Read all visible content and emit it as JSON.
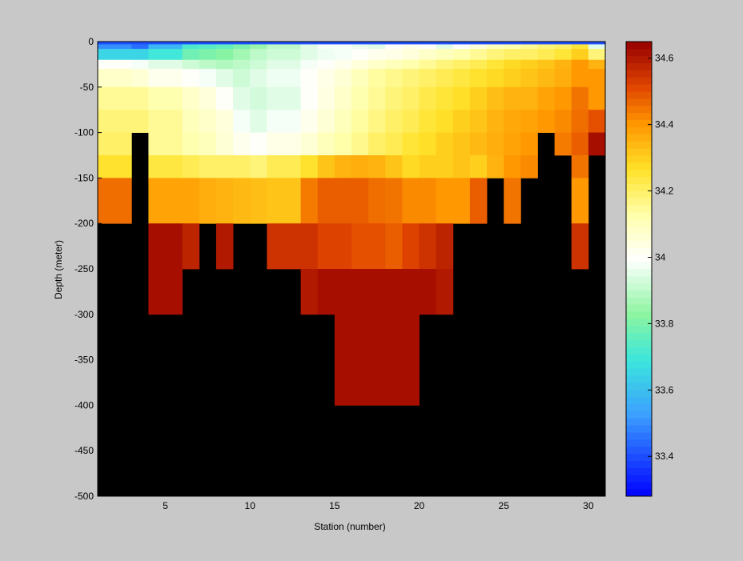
{
  "chart_data": {
    "type": "heatmap",
    "xlabel": "Station (number)",
    "ylabel": "Depth (meter)",
    "xlim": [
      1,
      31
    ],
    "ylim": [
      -500,
      0
    ],
    "xticks": [
      5,
      10,
      15,
      20,
      25,
      30
    ],
    "yticks": [
      0,
      -50,
      -100,
      -150,
      -200,
      -250,
      -300,
      -350,
      -400,
      -450,
      -500
    ],
    "x_cell_edges": [
      1,
      3,
      4,
      6,
      7,
      8,
      9,
      10,
      11,
      13,
      14,
      15,
      16,
      17,
      18,
      19,
      20,
      21,
      22,
      23,
      24,
      25,
      26,
      27,
      28,
      29,
      30,
      31
    ],
    "depth_layers": [
      {
        "top": 0,
        "bottom": -3,
        "values": [
          33.4,
          33.4,
          33.4,
          33.4,
          33.4,
          33.4,
          33.4,
          33.4,
          33.4,
          33.4,
          33.4,
          33.4,
          33.4,
          33.4,
          33.4,
          33.4,
          33.4,
          33.4,
          33.4,
          33.4,
          33.4,
          33.4,
          33.4,
          33.4,
          33.4,
          33.4,
          33.4
        ]
      },
      {
        "top": -3,
        "bottom": -8,
        "values": [
          33.5,
          33.45,
          33.58,
          33.72,
          33.74,
          33.76,
          33.8,
          33.85,
          33.9,
          33.95,
          33.98,
          33.98,
          33.96,
          33.95,
          34.0,
          34.02,
          34.0,
          33.95,
          34.0,
          34.05,
          34.1,
          34.12,
          34.15,
          34.18,
          34.2,
          34.25,
          33.95
        ]
      },
      {
        "top": -8,
        "bottom": -20,
        "values": [
          33.65,
          33.65,
          33.7,
          33.78,
          33.8,
          33.82,
          33.86,
          33.9,
          33.92,
          33.95,
          33.97,
          33.98,
          34.0,
          34.02,
          34.03,
          34.05,
          34.08,
          34.1,
          34.12,
          34.15,
          34.18,
          34.2,
          34.2,
          34.22,
          34.25,
          34.3,
          34.18
        ]
      },
      {
        "top": -20,
        "bottom": -30,
        "values": [
          34.0,
          33.98,
          33.95,
          33.92,
          33.9,
          33.88,
          33.9,
          33.92,
          33.95,
          33.98,
          34.0,
          34.02,
          34.05,
          34.08,
          34.1,
          34.12,
          34.15,
          34.18,
          34.2,
          34.22,
          34.25,
          34.28,
          34.3,
          34.32,
          34.35,
          34.4,
          34.35
        ]
      },
      {
        "top": -30,
        "bottom": -50,
        "values": [
          34.08,
          34.06,
          34.02,
          34.0,
          33.98,
          33.95,
          33.92,
          33.95,
          33.97,
          34.0,
          34.03,
          34.06,
          34.1,
          34.14,
          34.16,
          34.18,
          34.2,
          34.22,
          34.24,
          34.26,
          34.28,
          34.3,
          34.32,
          34.34,
          34.36,
          34.4,
          34.4
        ]
      },
      {
        "top": -50,
        "bottom": -75,
        "values": [
          34.15,
          34.15,
          34.12,
          34.08,
          34.05,
          34.0,
          33.95,
          33.93,
          33.95,
          34.0,
          34.04,
          34.08,
          34.12,
          34.15,
          34.18,
          34.2,
          34.23,
          34.25,
          34.27,
          34.3,
          34.33,
          34.35,
          34.35,
          34.38,
          34.4,
          34.45,
          34.4
        ]
      },
      {
        "top": -75,
        "bottom": -100,
        "values": [
          34.18,
          34.18,
          34.15,
          34.1,
          34.08,
          34.05,
          33.98,
          33.95,
          33.98,
          34.02,
          34.06,
          34.1,
          34.14,
          34.17,
          34.2,
          34.22,
          34.25,
          34.27,
          34.3,
          34.32,
          34.35,
          34.37,
          34.38,
          34.4,
          34.42,
          34.46,
          34.5
        ]
      },
      {
        "top": -100,
        "bottom": -125,
        "values": [
          34.2,
          null,
          34.15,
          34.12,
          34.1,
          34.06,
          34.02,
          34.0,
          34.03,
          34.06,
          34.1,
          34.13,
          34.16,
          34.2,
          34.22,
          34.25,
          34.27,
          34.3,
          34.32,
          34.34,
          34.36,
          34.38,
          34.4,
          null,
          34.44,
          34.48,
          34.62
        ]
      },
      {
        "top": -125,
        "bottom": -150,
        "values": [
          34.26,
          null,
          34.24,
          34.22,
          34.2,
          34.2,
          34.2,
          34.18,
          34.22,
          34.26,
          34.32,
          34.35,
          34.36,
          34.35,
          34.32,
          34.28,
          34.3,
          34.3,
          34.32,
          34.3,
          34.35,
          34.4,
          34.42,
          null,
          null,
          34.45,
          null
        ]
      },
      {
        "top": -150,
        "bottom": -200,
        "values": [
          34.46,
          null,
          34.38,
          34.38,
          34.36,
          34.35,
          34.34,
          34.33,
          34.32,
          34.44,
          34.48,
          34.48,
          34.48,
          34.46,
          34.45,
          34.42,
          34.42,
          34.4,
          34.4,
          34.48,
          null,
          34.45,
          null,
          null,
          null,
          34.4,
          null
        ]
      },
      {
        "top": -200,
        "bottom": -250,
        "values": [
          null,
          null,
          34.62,
          34.58,
          null,
          34.6,
          null,
          null,
          34.55,
          34.55,
          34.52,
          34.52,
          34.5,
          34.5,
          34.48,
          34.52,
          34.55,
          34.58,
          null,
          null,
          null,
          null,
          null,
          null,
          null,
          34.55,
          null
        ]
      },
      {
        "top": -250,
        "bottom": -300,
        "values": [
          null,
          null,
          34.62,
          null,
          null,
          null,
          null,
          null,
          null,
          34.6,
          34.62,
          34.62,
          34.62,
          34.62,
          34.62,
          34.62,
          34.62,
          34.6,
          null,
          null,
          null,
          null,
          null,
          null,
          null,
          null,
          null
        ]
      },
      {
        "top": -300,
        "bottom": -400,
        "values": [
          null,
          null,
          null,
          null,
          null,
          null,
          null,
          null,
          null,
          null,
          null,
          34.62,
          34.62,
          34.62,
          34.62,
          34.62,
          null,
          null,
          null,
          null,
          null,
          null,
          null,
          null,
          null,
          null,
          null
        ]
      }
    ],
    "colorbar": {
      "min": 33.28,
      "max": 34.65,
      "ticks": [
        "34.6",
        "34.4",
        "34.2",
        "34",
        "33.8",
        "33.6",
        "33.4"
      ],
      "tick_values": [
        34.6,
        34.4,
        34.2,
        34.0,
        33.8,
        33.6,
        33.4
      ]
    },
    "missing_color": "#000000",
    "background_color": "#c8c8c8"
  }
}
